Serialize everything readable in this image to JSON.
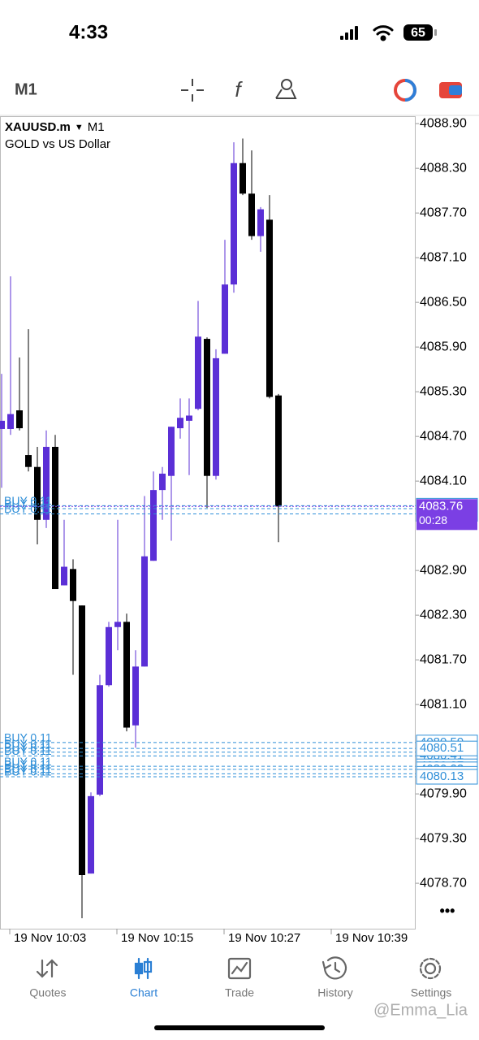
{
  "status_bar": {
    "time": "4:33",
    "battery": "65"
  },
  "toolbar": {
    "timeframe": "M1"
  },
  "chart_data": {
    "type": "candlestick",
    "symbol": "XAUUSD.m",
    "timeframe": "M1",
    "description": "GOLD vs US Dollar",
    "x": [
      "19 Nov 10:02",
      "19 Nov 10:03",
      "19 Nov 10:04",
      "19 Nov 10:05",
      "19 Nov 10:06",
      "19 Nov 10:07",
      "19 Nov 10:08",
      "19 Nov 10:09",
      "19 Nov 10:10",
      "19 Nov 10:11",
      "19 Nov 10:12",
      "19 Nov 10:13",
      "19 Nov 10:14",
      "19 Nov 10:15",
      "19 Nov 10:16",
      "19 Nov 10:17",
      "19 Nov 10:18",
      "19 Nov 10:19",
      "19 Nov 10:20",
      "19 Nov 10:21",
      "19 Nov 10:22",
      "19 Nov 10:23",
      "19 Nov 10:24",
      "19 Nov 10:25",
      "19 Nov 10:26",
      "19 Nov 10:27",
      "19 Nov 10:28",
      "19 Nov 10:29",
      "19 Nov 10:30",
      "19 Nov 10:31",
      "19 Nov 10:32",
      "19 Nov 10:33"
    ],
    "open": [
      4084.8,
      4084.8,
      4085.05,
      4084.45,
      4084.29,
      4083.58,
      4084.56,
      4082.7,
      4082.92,
      4082.43,
      4078.83,
      4079.89,
      4081.36,
      4082.14,
      4082.21,
      4080.82,
      4081.61,
      4083.03,
      4083.98,
      4084.17,
      4084.81,
      4084.91,
      4085.07,
      4086.01,
      4084.17,
      4085.81,
      4086.74,
      4088.37,
      4087.96,
      4087.39,
      4087.61,
      4085.25
    ],
    "high": [
      4085.54,
      4086.85,
      4085.76,
      4086.14,
      4084.56,
      4084.78,
      4084.72,
      4083.58,
      4083.05,
      4082.43,
      4079.92,
      4081.5,
      4082.21,
      4083.58,
      4082.32,
      4081.83,
      4083.9,
      4084.23,
      4084.29,
      4084.83,
      4085.21,
      4085.21,
      4086.52,
      4086.03,
      4085.87,
      4087.34,
      4088.65,
      4088.7,
      4088.54,
      4087.78,
      4087.94,
      4085.27
    ],
    "low": [
      4084.01,
      4084.72,
      4084.78,
      4084.23,
      4083.25,
      4083.47,
      4082.65,
      4082.7,
      4081.5,
      4078.23,
      4078.83,
      4079.87,
      4081.34,
      4081.83,
      4080.74,
      4080.52,
      4081.61,
      4083.03,
      4083.58,
      4083.3,
      4084.67,
      4084.18,
      4085.05,
      4083.74,
      4084.12,
      4085.81,
      4086.63,
      4087.94,
      4087.34,
      4087.18,
      4085.21,
      4083.28
    ],
    "close": [
      4084.91,
      4085.0,
      4084.81,
      4084.29,
      4083.58,
      4084.56,
      4082.65,
      4082.95,
      4082.49,
      4078.81,
      4079.87,
      4081.36,
      4082.14,
      4082.21,
      4080.79,
      4081.61,
      4083.09,
      4083.98,
      4084.2,
      4084.83,
      4084.95,
      4084.98,
      4086.04,
      4084.17,
      4085.75,
      4086.74,
      4088.37,
      4087.96,
      4087.39,
      4087.75,
      4085.23,
      4083.76
    ],
    "up_color": "#5b2fd6",
    "down_color": "#000000",
    "ylim": [
      4078.09,
      4089.0
    ],
    "yticks": [
      {
        "value": 4088.9,
        "label": "4088.90"
      },
      {
        "value": 4088.3,
        "label": "4088.30"
      },
      {
        "value": 4087.7,
        "label": "4087.70"
      },
      {
        "value": 4087.1,
        "label": "4087.10"
      },
      {
        "value": 4086.5,
        "label": "4086.50"
      },
      {
        "value": 4085.9,
        "label": "4085.90"
      },
      {
        "value": 4085.3,
        "label": "4085.30"
      },
      {
        "value": 4084.7,
        "label": "4084.70"
      },
      {
        "value": 4084.1,
        "label": "4084.10"
      },
      {
        "value": 4082.9,
        "label": "4082.90"
      },
      {
        "value": 4082.3,
        "label": "4082.30"
      },
      {
        "value": 4081.7,
        "label": "4081.70"
      },
      {
        "value": 4081.1,
        "label": "4081.10"
      },
      {
        "value": 4079.9,
        "label": "4079.90"
      },
      {
        "value": 4079.3,
        "label": "4079.30"
      },
      {
        "value": 4078.7,
        "label": "4078.70"
      }
    ],
    "xticks": [
      "19 Nov 10:03",
      "19 Nov 10:15",
      "19 Nov 10:27",
      "19 Nov 10:39"
    ],
    "orders": [
      {
        "label": "BUY 0.11",
        "price": 4083.77
      },
      {
        "label": "BUY 0.11",
        "price": 4083.73
      },
      {
        "label": "BUY 0.11",
        "price": 4083.66
      },
      {
        "label": "BUY 0.11",
        "price": 4080.59
      },
      {
        "label": "BUY 0.11",
        "price": 4080.46
      },
      {
        "label": "BUY 0.11",
        "price": 4080.41
      },
      {
        "label": "BUY 0.11",
        "price": 4080.51
      },
      {
        "label": "BUY 0.11",
        "price": 4080.27
      },
      {
        "label": "BUY 0.11",
        "price": 4080.23
      },
      {
        "label": "BUY 0.11",
        "price": 4080.17
      },
      {
        "label": "BUY 0.11",
        "price": 4080.13
      }
    ],
    "order_color": "#2f8fd8",
    "bid": 4083.76,
    "bid_timer": "00:28",
    "bid_color": "#7b3fe4"
  },
  "tabs": [
    {
      "label": "Quotes",
      "active": false
    },
    {
      "label": "Chart",
      "active": true
    },
    {
      "label": "Trade",
      "active": false
    },
    {
      "label": "History",
      "active": false
    },
    {
      "label": "Settings",
      "active": false
    }
  ],
  "watermark": "@Emma_Lia"
}
